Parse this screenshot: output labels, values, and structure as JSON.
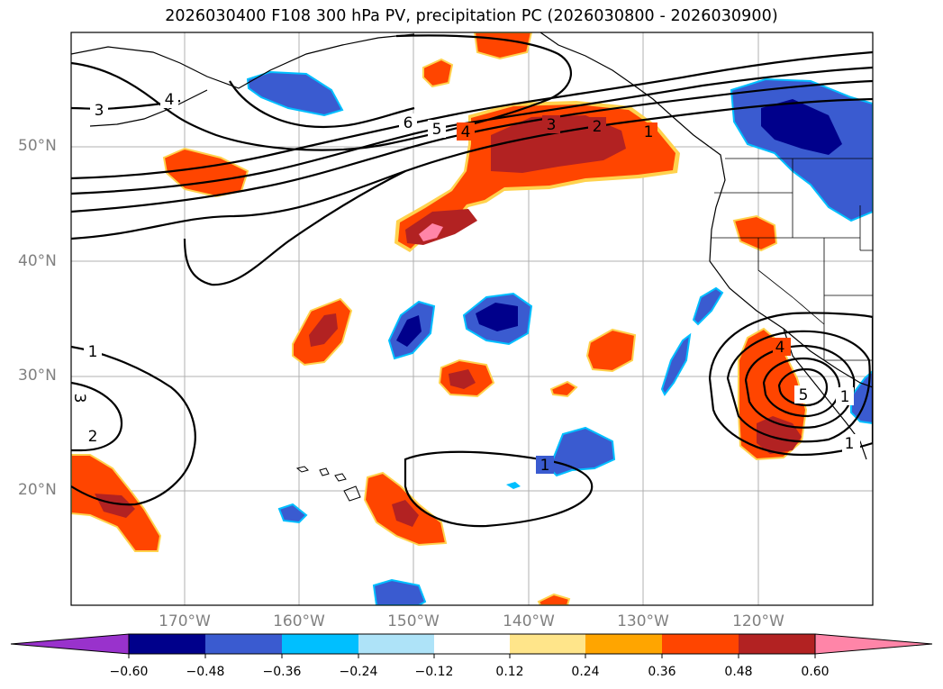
{
  "title": "2026030400 F108 300 hPa PV, precipitation PC (2026030800 - 2026030900)",
  "map": {
    "projection": "PlateCarree",
    "lon_range": [
      180,
      -110
    ],
    "lat_range": [
      10,
      60
    ],
    "lat_labels": [
      "50°N",
      "40°N",
      "30°N",
      "20°N"
    ],
    "lon_labels": [
      "170°W",
      "160°W",
      "150°W",
      "140°W",
      "130°W",
      "120°W"
    ],
    "pv_contour_labels": [
      "3",
      "4",
      "6",
      "5",
      "4",
      "3",
      "2",
      "1",
      "1",
      "2",
      "1",
      "3",
      "1",
      "5",
      "4",
      "1"
    ]
  },
  "colorbar": {
    "tick_labels": [
      "−0.60",
      "−0.48",
      "−0.36",
      "−0.24",
      "−0.12",
      "0.12",
      "0.24",
      "0.36",
      "0.48",
      "0.60"
    ],
    "colors": [
      "#9932cc",
      "#00008b",
      "#3a5bd0",
      "#00bfff",
      "#aee3f8",
      "#ffffff",
      "#ffe58a",
      "#ffa500",
      "#ff4500",
      "#b22222",
      "#ff85a8"
    ],
    "extend": "both"
  }
}
